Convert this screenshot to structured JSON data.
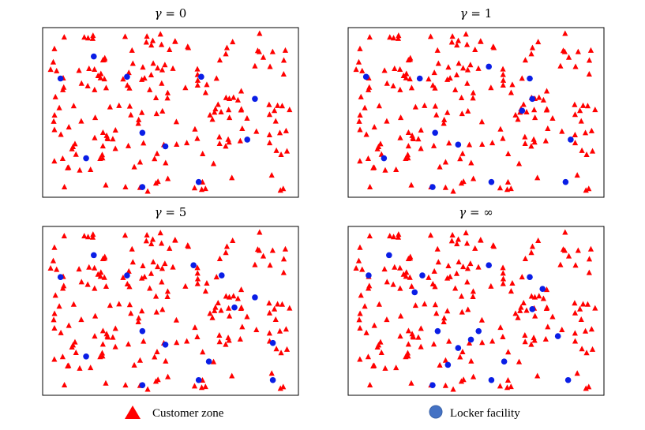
{
  "figure": {
    "legend": [
      {
        "label": "Customer zone",
        "marker": "triangle",
        "color": "#ff0000"
      },
      {
        "label": "Locker facility",
        "marker": "circle",
        "color": "#4472c4"
      }
    ]
  },
  "colors": {
    "customer": "#ff0000",
    "locker": "#0a1ee6",
    "legend_locker": "#4472c4",
    "frame": "#000000"
  },
  "chart_data": [
    {
      "type": "scatter",
      "title": "γ = 0",
      "title_var": "γ",
      "title_rest": " = 0",
      "xlim": [
        0,
        100
      ],
      "ylim": [
        0,
        100
      ],
      "grid": false,
      "series": [
        {
          "name": "Customer zone",
          "marker": "triangle"
        },
        {
          "name": "Locker facility",
          "marker": "circle",
          "points": [
            [
              20,
              83
            ],
            [
              7,
              70
            ],
            [
              33,
              71
            ],
            [
              62,
              71
            ],
            [
              83,
              58
            ],
            [
              39,
              38
            ],
            [
              48,
              30
            ],
            [
              17,
              23
            ],
            [
              80,
              34
            ],
            [
              39,
              6
            ],
            [
              61,
              9
            ]
          ]
        }
      ]
    },
    {
      "type": "scatter",
      "title": "γ = 1",
      "title_var": "γ",
      "title_rest": " = 1",
      "xlim": [
        0,
        100
      ],
      "ylim": [
        0,
        100
      ],
      "grid": false,
      "series": [
        {
          "name": "Customer zone",
          "marker": "triangle"
        },
        {
          "name": "Locker facility",
          "marker": "circle",
          "points": [
            [
              55,
              77
            ],
            [
              7,
              71
            ],
            [
              28,
              70
            ],
            [
              71,
              70
            ],
            [
              72,
              58
            ],
            [
              68,
              51
            ],
            [
              34,
              38
            ],
            [
              43,
              31
            ],
            [
              14,
              23
            ],
            [
              87,
              34
            ],
            [
              33,
              6
            ],
            [
              56,
              9
            ],
            [
              85,
              9
            ]
          ]
        }
      ]
    },
    {
      "type": "scatter",
      "title": "γ = 5",
      "title_var": "γ",
      "title_rest": " = 5",
      "xlim": [
        0,
        100
      ],
      "ylim": [
        0,
        100
      ],
      "grid": false,
      "series": [
        {
          "name": "Customer zone",
          "marker": "triangle"
        },
        {
          "name": "Locker facility",
          "marker": "circle",
          "points": [
            [
              20,
              83
            ],
            [
              7,
              70
            ],
            [
              33,
              71
            ],
            [
              59,
              77
            ],
            [
              70,
              71
            ],
            [
              83,
              58
            ],
            [
              75,
              52
            ],
            [
              39,
              38
            ],
            [
              48,
              30
            ],
            [
              17,
              23
            ],
            [
              65,
              20
            ],
            [
              90,
              31
            ],
            [
              39,
              6
            ],
            [
              61,
              9
            ],
            [
              90,
              9
            ]
          ]
        }
      ]
    },
    {
      "type": "scatter",
      "title": "γ = ∞",
      "title_var": "γ",
      "title_rest": " = ∞",
      "xlim": [
        0,
        100
      ],
      "ylim": [
        0,
        100
      ],
      "grid": false,
      "series": [
        {
          "name": "Customer zone",
          "marker": "triangle"
        },
        {
          "name": "Locker facility",
          "marker": "circle",
          "points": [
            [
              16,
              83
            ],
            [
              8,
              71
            ],
            [
              29,
              71
            ],
            [
              55,
              77
            ],
            [
              26,
              61
            ],
            [
              71,
              70
            ],
            [
              76,
              63
            ],
            [
              72,
              51
            ],
            [
              35,
              38
            ],
            [
              48,
              33
            ],
            [
              51,
              38
            ],
            [
              43,
              28
            ],
            [
              82,
              35
            ],
            [
              39,
              18
            ],
            [
              61,
              20
            ],
            [
              33,
              6
            ],
            [
              56,
              9
            ],
            [
              86,
              9
            ]
          ]
        }
      ]
    }
  ]
}
